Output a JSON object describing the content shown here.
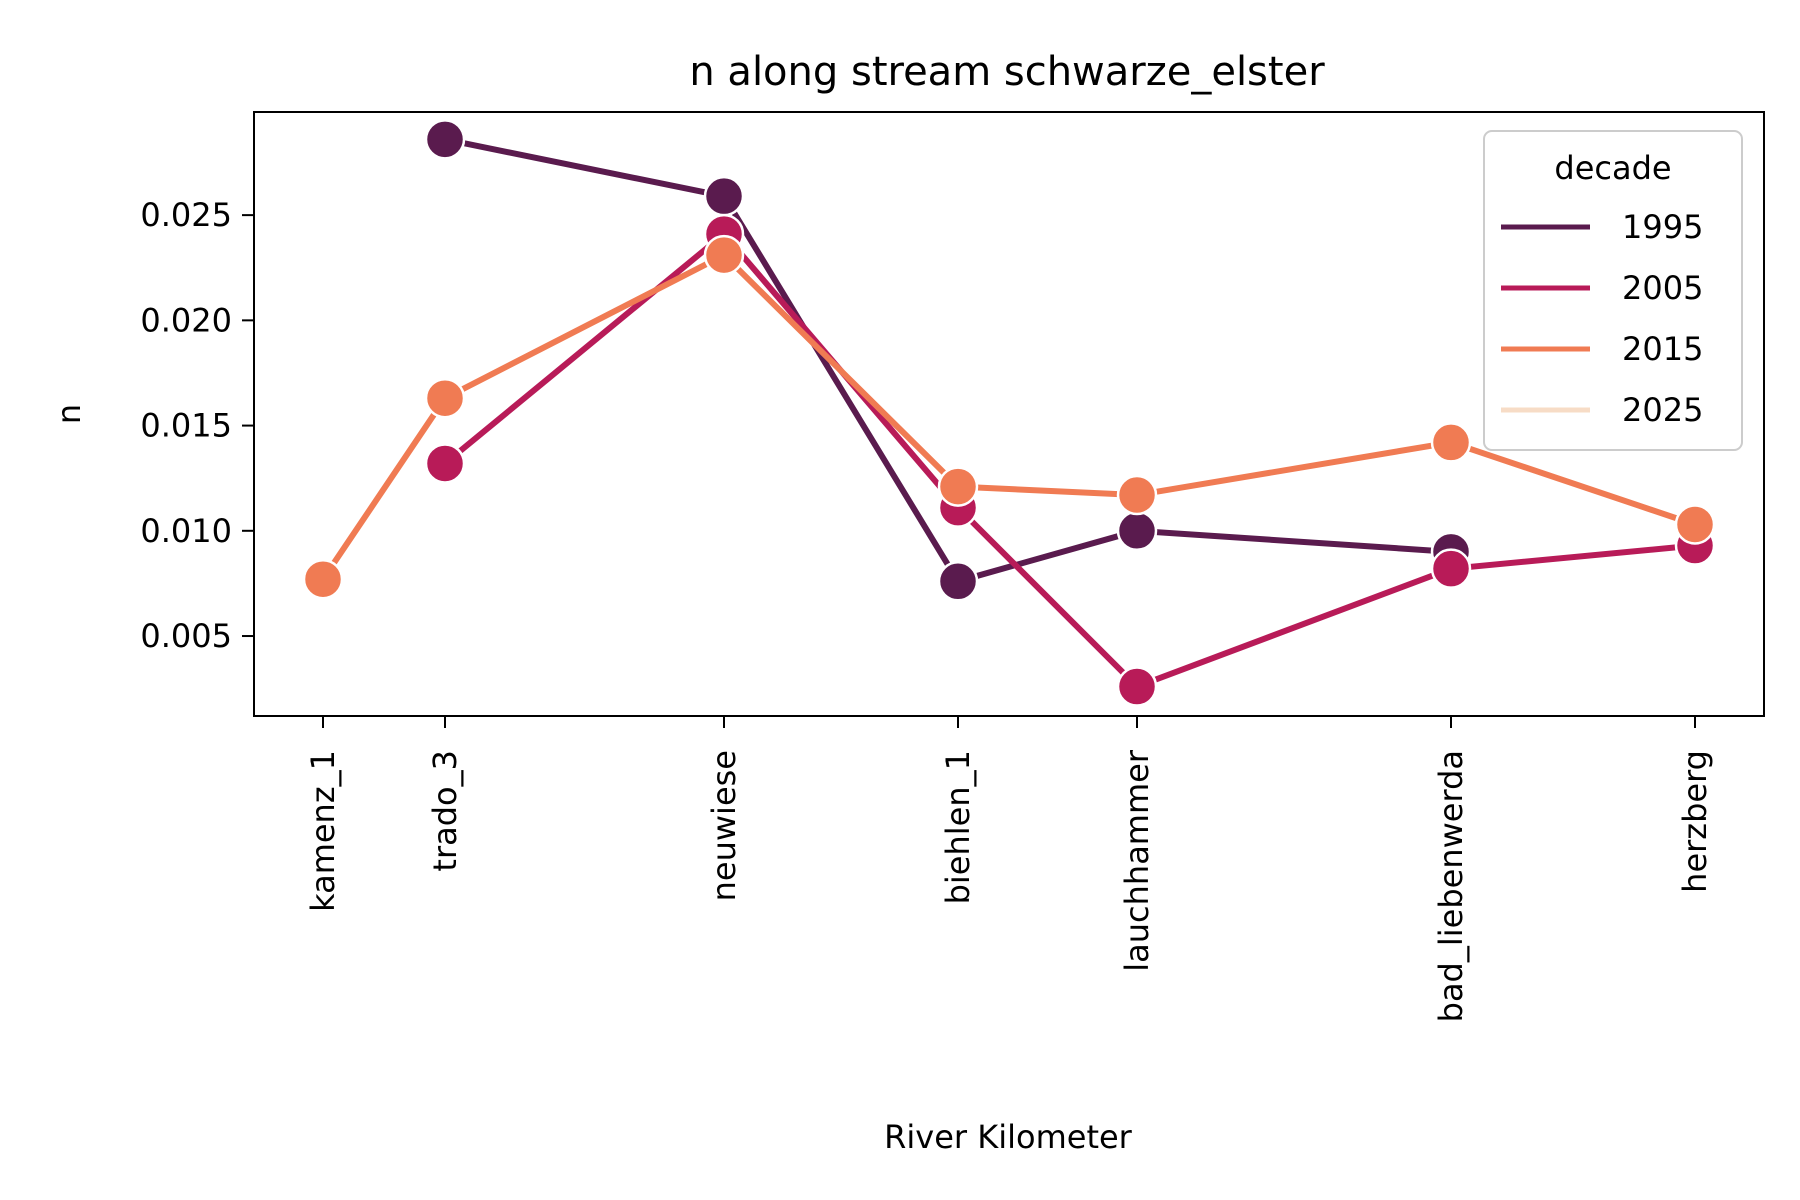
{
  "chart_data": {
    "type": "line",
    "title": "n along stream schwarze_elster",
    "xlabel": "River Kilometer",
    "ylabel": "n",
    "categories": [
      "kamenz_1",
      "trado_3",
      "neuwiese",
      "biehlen_1",
      "lauchhammer",
      "bad_liebenwerda",
      "herzberg"
    ],
    "y_ticks": [
      "0.005",
      "0.010",
      "0.015",
      "0.020",
      "0.025"
    ],
    "ylim": [
      0.0012,
      0.0299
    ],
    "legend": {
      "title": "decade",
      "placement": "top-right"
    },
    "series": [
      {
        "name": "1995",
        "color": "#5a1b4e",
        "values": [
          null,
          0.0286,
          0.0259,
          0.0076,
          0.01,
          0.009,
          null
        ]
      },
      {
        "name": "2005",
        "color": "#b81b58",
        "values": [
          null,
          0.0132,
          0.0241,
          0.0111,
          0.0026,
          0.0082,
          0.0093
        ]
      },
      {
        "name": "2015",
        "color": "#f07b53",
        "values": [
          0.0077,
          0.0163,
          0.0231,
          0.0121,
          0.0117,
          0.0142,
          0.0103
        ]
      },
      {
        "name": "2025",
        "color": "#f7dcc6",
        "values": [
          null,
          null,
          null,
          null,
          null,
          null,
          null
        ]
      }
    ]
  }
}
